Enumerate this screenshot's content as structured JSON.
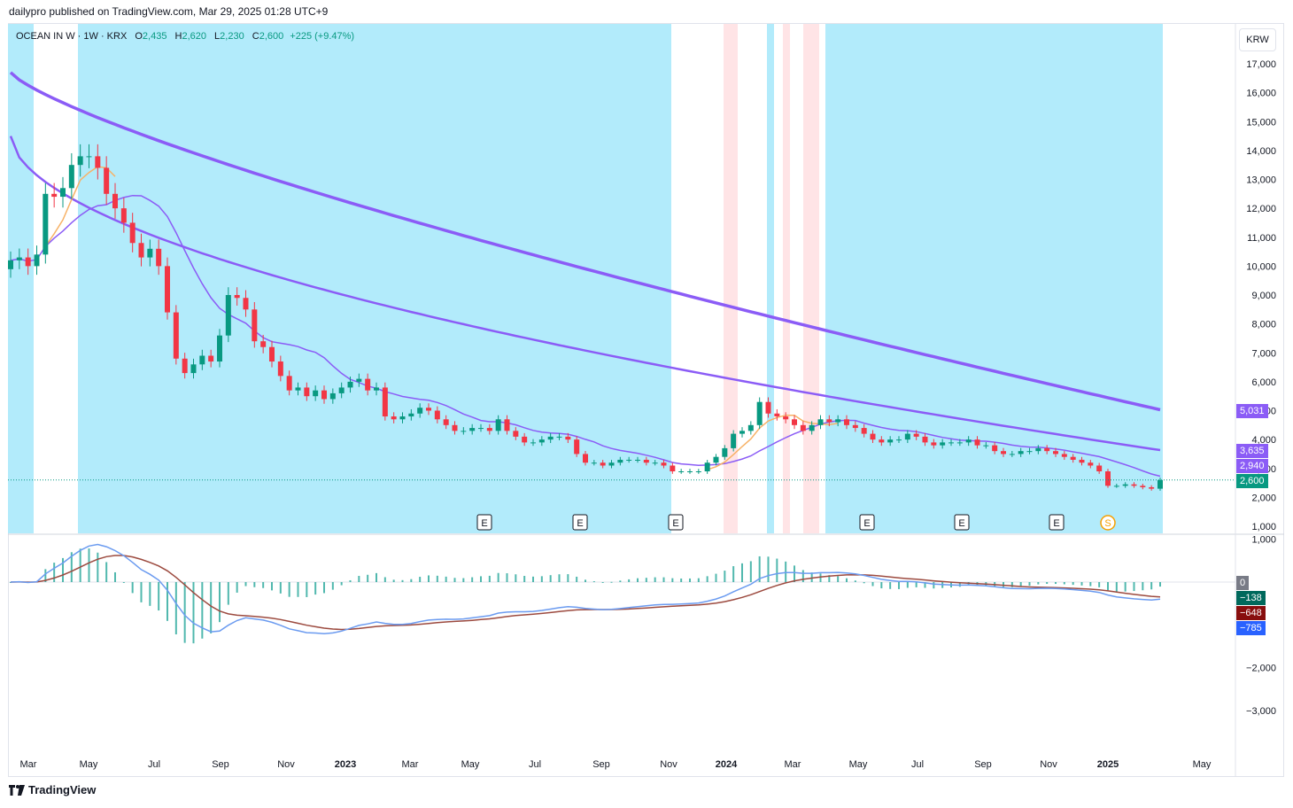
{
  "header": {
    "text": "dailypro published on TradingView.com, Mar 29, 2025 01:28 UTC+9"
  },
  "legend": {
    "symbol": "OCEAN IN W · 1W · KRX",
    "open_label": "O",
    "open": "2,435",
    "high_label": "H",
    "high": "2,620",
    "low_label": "L",
    "low": "2,230",
    "close_label": "C",
    "close": "2,600",
    "change": "+225 (+9.47%)"
  },
  "currency": "KRW",
  "badges": {
    "ma_long": "5,031",
    "ma_mid": "3,635",
    "ma_short": "2,940",
    "price": "2,600",
    "macd_zero": "0",
    "macd_hist": "−138",
    "macd_signal": "−648",
    "macd_line": "−785"
  },
  "footer": {
    "brand": "TradingView"
  },
  "colors": {
    "up": "#089981",
    "down": "#f23645",
    "bg_band": "#b2ebfb",
    "pink_band": "#ffe4e6",
    "ma_purple": "#8b5cf6",
    "ma_orange": "#f7b267",
    "macd_blue": "#6b9bf0",
    "signal": "#9c4a3f"
  },
  "chart_data": [
    {
      "type": "candlestick",
      "interval": "1W",
      "y_unit": "KRW",
      "y_ticks": [
        "17,000",
        "16,000",
        "15,000",
        "14,000",
        "13,000",
        "12,000",
        "11,000",
        "10,000",
        "9,000",
        "8,000",
        "7,000",
        "6,000",
        "5,000",
        "4,000",
        "3,000",
        "2,000",
        "1,000"
      ],
      "x_ticks": [
        "Mar",
        "May",
        "Jul",
        "Sep",
        "Nov",
        "2023",
        "Mar",
        "May",
        "Jul",
        "Sep",
        "Nov",
        "2024",
        "Mar",
        "May",
        "Jul",
        "Sep",
        "Nov",
        "2025",
        "May"
      ],
      "closes": [
        10200,
        10300,
        10000,
        10400,
        12500,
        12400,
        12700,
        13500,
        13800,
        13800,
        13400,
        12500,
        12000,
        11500,
        10800,
        10300,
        10600,
        10000,
        8400,
        6800,
        6300,
        6600,
        6900,
        6700,
        7600,
        9000,
        8900,
        8500,
        7400,
        7200,
        6700,
        6200,
        5700,
        5800,
        5500,
        5700,
        5400,
        5600,
        5800,
        6000,
        6100,
        5700,
        5800,
        4800,
        4700,
        4800,
        4900,
        5100,
        5000,
        4700,
        4500,
        4300,
        4300,
        4400,
        4400,
        4300,
        4700,
        4300,
        4100,
        3900,
        3900,
        4000,
        4100,
        4100,
        4000,
        3500,
        3200,
        3200,
        3100,
        3200,
        3300,
        3300,
        3300,
        3200,
        3200,
        3100,
        2900,
        2900,
        2900,
        2900,
        3200,
        3400,
        3700,
        4200,
        4300,
        4500,
        5300,
        4900,
        4800,
        4700,
        4500,
        4300,
        4500,
        4700,
        4600,
        4700,
        4500,
        4400,
        4200,
        4000,
        3900,
        4000,
        4000,
        4200,
        4100,
        3900,
        3800,
        3900,
        3900,
        3900,
        4000,
        3800,
        3800,
        3600,
        3500,
        3500,
        3600,
        3600,
        3700,
        3600,
        3500,
        3400,
        3300,
        3200,
        3100,
        2900,
        2400,
        2400,
        2450,
        2400,
        2350,
        2300,
        2600
      ],
      "moving_averages": [
        {
          "color": "purple",
          "last": "5,031"
        },
        {
          "color": "purple",
          "last": "3,635"
        },
        {
          "color": "purple",
          "last": "2,940"
        }
      ],
      "last_price": "2,600",
      "event_markers": [
        "E",
        "E",
        "E",
        "E",
        "E",
        "E",
        "S"
      ]
    },
    {
      "type": "macd",
      "y_ticks": [
        "1,000",
        "−2,000",
        "−3,000"
      ],
      "last_values": {
        "zero": "0",
        "histogram": "−138",
        "signal": "−648",
        "macd": "−785"
      }
    }
  ]
}
